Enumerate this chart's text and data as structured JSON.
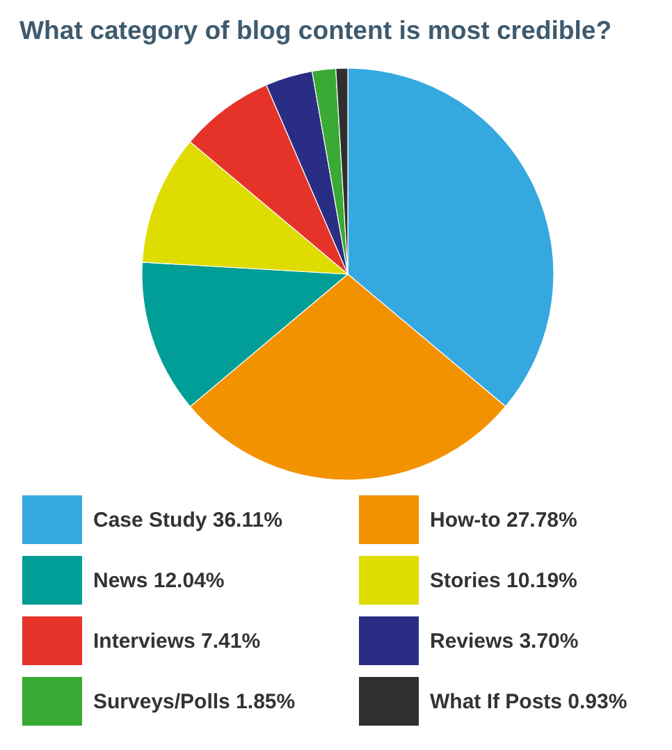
{
  "chart_data": {
    "type": "pie",
    "title": "What category of blog content is most credible?",
    "categories": [
      "Case Study",
      "How-to",
      "News",
      "Stories",
      "Interviews",
      "Reviews",
      "Surveys/Polls",
      "What If Posts"
    ],
    "values": [
      36.11,
      27.78,
      12.04,
      10.19,
      7.41,
      3.7,
      1.85,
      0.93
    ],
    "value_labels": [
      "36.11%",
      "27.78%",
      "12.04%",
      "10.19%",
      "7.41%",
      "3.70%",
      "1.85%",
      "0.93%"
    ],
    "colors": [
      "#35a8e0",
      "#f39200",
      "#009e96",
      "#dedc00",
      "#e6332a",
      "#2a2d84",
      "#3aaa35",
      "#2f2f2f"
    ],
    "legend": "bottom"
  }
}
